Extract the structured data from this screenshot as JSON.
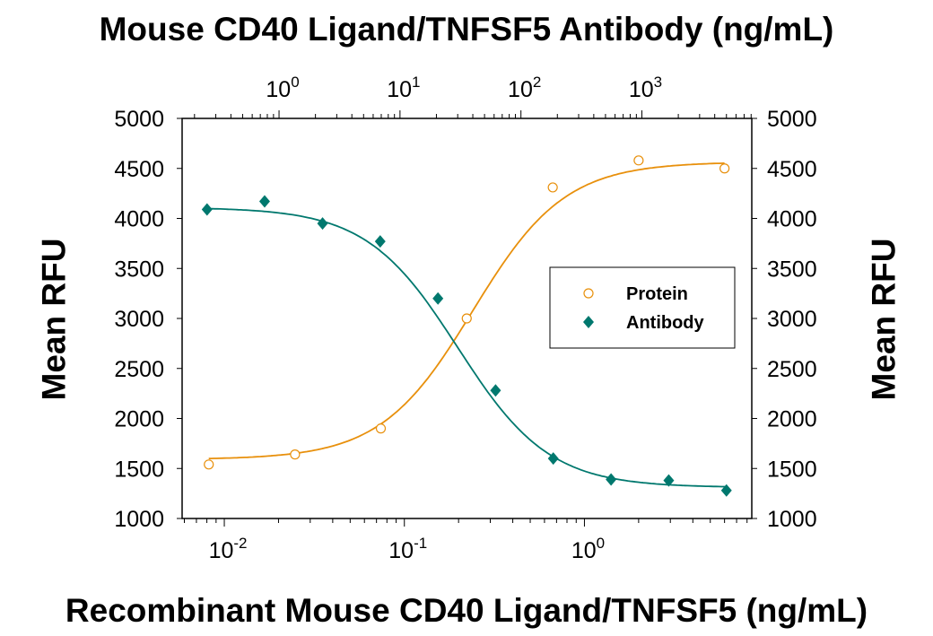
{
  "chart_data": {
    "type": "scatter",
    "title": "Mouse CD40 Ligand/TNFSF5 Antibody (ng/mL)",
    "xlabel": "Recombinant Mouse CD40 Ligand/TNFSF5 (ng/mL)",
    "x2label": "Mouse CD40 Ligand/TNFSF5 Antibody (ng/mL)",
    "ylabel": "Mean RFU",
    "y2label": "Mean RFU",
    "xscale": "log",
    "xlim": [
      0.00583,
      8.5
    ],
    "x2lim": [
      0.158,
      8100
    ],
    "ylim": [
      1000,
      5000
    ],
    "yticks": [
      1000,
      1500,
      2000,
      2500,
      3000,
      3500,
      4000,
      4500,
      5000
    ],
    "xticks": [
      {
        "base": "10",
        "exp": "-2",
        "value": 0.01
      },
      {
        "base": "10",
        "exp": "-1",
        "value": 0.1
      },
      {
        "base": "10",
        "exp": "0",
        "value": 1
      }
    ],
    "x2ticks": [
      {
        "base": "10",
        "exp": "0",
        "value": 1
      },
      {
        "base": "10",
        "exp": "1",
        "value": 10
      },
      {
        "base": "10",
        "exp": "2",
        "value": 100
      },
      {
        "base": "10",
        "exp": "3",
        "value": 1000
      }
    ],
    "grid": false,
    "legend_position": "center-right",
    "series": [
      {
        "name": "Protein",
        "axis": "bottom",
        "marker": "open-circle",
        "color": "#E8900C",
        "x": [
          0.0082,
          0.0247,
          0.074,
          0.222,
          0.667,
          2,
          6
        ],
        "y": [
          1540,
          1640,
          1900,
          3000,
          4310,
          4580,
          4500
        ],
        "fit": {
          "bottom": 1590,
          "top": 4565,
          "ec50": 0.24,
          "hill": 1.7
        }
      },
      {
        "name": "Antibody",
        "axis": "top",
        "marker": "filled-diamond",
        "color": "#00786E",
        "x": [
          0.254,
          0.76,
          2.29,
          6.86,
          20.6,
          61.7,
          185,
          556,
          1667,
          5000
        ],
        "y": [
          4090,
          4170,
          3950,
          3770,
          3200,
          2280,
          1600,
          1390,
          1380,
          1280
        ],
        "fit": {
          "bottom": 1310,
          "top": 4110,
          "ec50": 30,
          "hill": 1.15
        }
      }
    ]
  }
}
